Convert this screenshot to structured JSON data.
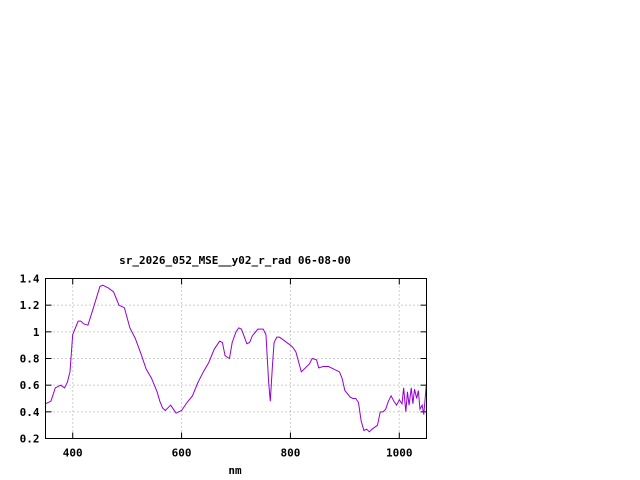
{
  "chart_data": {
    "type": "line",
    "title": "sr_2026_052_MSE__y02_r_rad 06-08-00",
    "xlabel": "nm",
    "ylabel": "",
    "xlim": [
      350,
      1050
    ],
    "ylim": [
      0.2,
      1.4
    ],
    "x_ticks": [
      400,
      600,
      800,
      1000
    ],
    "x_tick_labels": [
      "400",
      "600",
      "800",
      "1000"
    ],
    "y_ticks": [
      0.2,
      0.4,
      0.6,
      0.8,
      1.0,
      1.2,
      1.4
    ],
    "y_tick_labels": [
      "0.2",
      "0.4",
      "0.6",
      "0.8",
      "1",
      "1.2",
      "1.4"
    ],
    "grid": true,
    "line_color": "#9400d3",
    "series": [
      {
        "x": [
          350,
          360,
          368,
          378,
          385,
          390,
          395,
          400,
          410,
          415,
          420,
          428,
          438,
          450,
          455,
          465,
          475,
          480,
          485,
          495,
          505,
          515,
          525,
          535,
          545,
          555,
          560,
          565,
          570,
          575,
          580,
          585,
          590,
          600,
          610,
          620,
          630,
          640,
          650,
          660,
          670,
          675,
          680,
          688,
          693,
          700,
          705,
          710,
          720,
          725,
          730,
          740,
          745,
          750,
          755,
          760,
          763,
          767,
          770,
          775,
          780,
          790,
          800,
          805,
          810,
          820,
          830,
          835,
          840,
          848,
          852,
          860,
          870,
          880,
          890,
          895,
          900,
          910,
          915,
          920,
          925,
          930,
          935,
          940,
          945,
          950,
          960,
          965,
          970,
          975,
          980,
          985,
          990,
          995,
          1000,
          1005,
          1008,
          1012,
          1015,
          1018,
          1022,
          1025,
          1028,
          1032,
          1035,
          1038,
          1042,
          1045,
          1050
        ],
        "y": [
          0.46,
          0.48,
          0.58,
          0.6,
          0.58,
          0.62,
          0.7,
          0.98,
          1.08,
          1.08,
          1.06,
          1.05,
          1.18,
          1.34,
          1.35,
          1.33,
          1.3,
          1.25,
          1.2,
          1.18,
          1.03,
          0.95,
          0.84,
          0.72,
          0.65,
          0.55,
          0.48,
          0.43,
          0.41,
          0.43,
          0.45,
          0.42,
          0.39,
          0.41,
          0.47,
          0.52,
          0.62,
          0.7,
          0.77,
          0.87,
          0.93,
          0.92,
          0.82,
          0.8,
          0.92,
          1.0,
          1.03,
          1.02,
          0.91,
          0.92,
          0.97,
          1.02,
          1.02,
          1.02,
          0.98,
          0.62,
          0.48,
          0.75,
          0.92,
          0.96,
          0.96,
          0.93,
          0.9,
          0.88,
          0.85,
          0.7,
          0.74,
          0.76,
          0.8,
          0.79,
          0.73,
          0.74,
          0.74,
          0.72,
          0.7,
          0.65,
          0.56,
          0.51,
          0.5,
          0.5,
          0.47,
          0.33,
          0.26,
          0.27,
          0.25,
          0.27,
          0.3,
          0.4,
          0.4,
          0.42,
          0.48,
          0.52,
          0.48,
          0.45,
          0.49,
          0.46,
          0.58,
          0.4,
          0.55,
          0.45,
          0.58,
          0.46,
          0.57,
          0.5,
          0.56,
          0.42,
          0.45,
          0.38,
          0.62
        ]
      }
    ]
  }
}
